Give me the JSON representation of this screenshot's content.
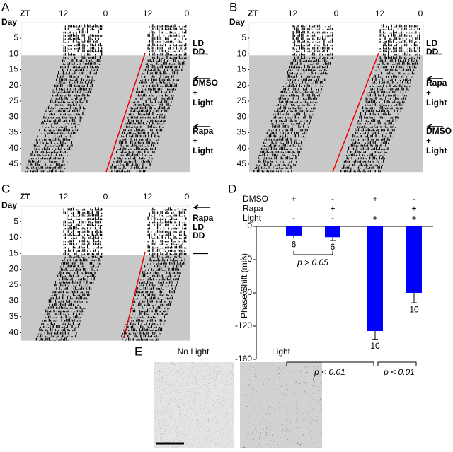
{
  "panels": [
    {
      "label": "A",
      "zt_label": "ZT",
      "zt_ticks": [
        12,
        0,
        12,
        0
      ],
      "day_label": "Day",
      "days": [
        5,
        10,
        15,
        20,
        25,
        30,
        35,
        40,
        45
      ],
      "notes": [
        [
          "LD",
          "DD"
        ],
        [
          "DMSO",
          "+",
          "Light"
        ],
        [
          "Rapa",
          "+",
          "Light"
        ]
      ]
    },
    {
      "label": "B",
      "zt_label": "ZT",
      "zt_ticks": [
        12,
        0,
        12,
        0
      ],
      "day_label": "Day",
      "days": [
        5,
        10,
        15,
        20,
        25,
        30,
        35,
        40,
        45
      ],
      "notes": [
        [
          "LD",
          "DD"
        ],
        [
          "Rapa",
          "+",
          "Light"
        ],
        [
          "DMSO",
          "+",
          "Light"
        ]
      ]
    },
    {
      "label": "C",
      "zt_label": "ZT",
      "zt_ticks": [
        12,
        0,
        12,
        0
      ],
      "day_label": "Day",
      "days": [
        5,
        10,
        15,
        20,
        25,
        30,
        35,
        40
      ],
      "notes": [
        [
          "LD",
          "DD"
        ],
        [
          "Rapa"
        ]
      ]
    }
  ],
  "chart_data": {
    "type": "bar",
    "label": "D",
    "conditions": [
      {
        "name": "DMSO",
        "signs": [
          "+",
          "-",
          "+",
          "-"
        ]
      },
      {
        "name": "Rapa",
        "signs": [
          "-",
          "+",
          "-",
          "+"
        ]
      },
      {
        "name": "Light",
        "signs": [
          "-",
          "-",
          "+",
          "+"
        ]
      }
    ],
    "values": [
      -11,
      -13,
      -126,
      -80
    ],
    "errors": [
      3,
      4,
      10,
      12
    ],
    "n": [
      6,
      6,
      10,
      10
    ],
    "color": "#0000ff",
    "y_label": "Phase Shift (min)",
    "ylim": [
      -160,
      0
    ],
    "yticks": [
      -160,
      -120,
      -80,
      -40,
      0
    ],
    "annotations": [
      "p > 0.05",
      "p < 0.01",
      "p < 0.01"
    ]
  },
  "panel_e": {
    "label": "E",
    "captions": [
      "No Light",
      "Light"
    ]
  }
}
